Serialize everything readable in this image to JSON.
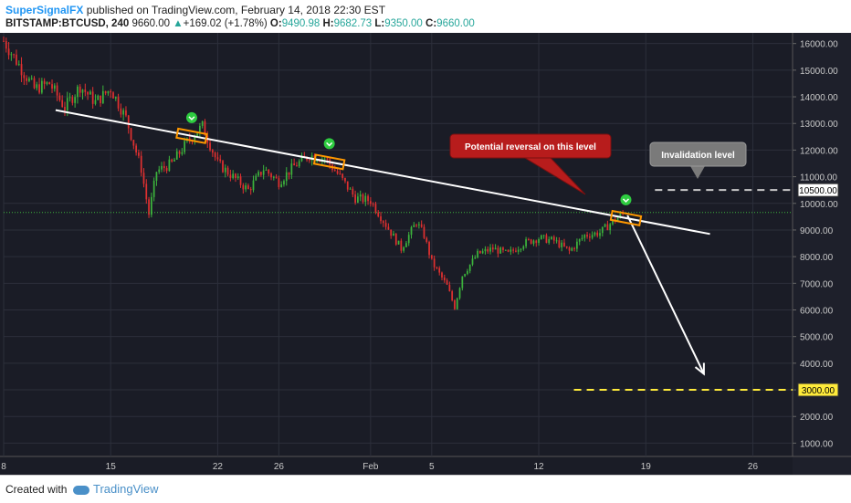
{
  "header": {
    "author": "SuperSignalFX",
    "published": "published on TradingView.com, February 14, 2018 22:30 EST",
    "symbol": "BITSTAMP:BTCUSD, 240",
    "last": "9660.00",
    "change": "+169.02 (+1.78%)",
    "o_label": "O:",
    "o_val": "9490.98",
    "h_label": "H:",
    "h_val": "9682.73",
    "l_label": "L:",
    "l_val": "9350.00",
    "c_label": "C:",
    "c_val": "9660.00"
  },
  "footer": {
    "created": "Created with",
    "brand": "TradingView"
  },
  "colors": {
    "bg": "#1a1c26",
    "up": "#3cb33c",
    "down": "#e03030",
    "grid": "#2c2f3b",
    "axis_text": "#c8c8c8"
  },
  "chart_data": {
    "type": "candlestick",
    "y_ticks": [
      1000,
      2000,
      3000,
      4000,
      5000,
      6000,
      7000,
      8000,
      9000,
      10000,
      11000,
      12000,
      13000,
      14000,
      15000,
      16000
    ],
    "y_tick_labels": [
      "1000.00",
      "2000.00",
      "3000.00",
      "4000.00",
      "5000.00",
      "6000.00",
      "7000.00",
      "8000.00",
      "9000.00",
      "10000.00",
      "11000.00",
      "12000.00",
      "13000.00",
      "14000.00",
      "15000.00",
      "16000.00"
    ],
    "ylim": [
      500,
      16400
    ],
    "x_ticks": [
      {
        "label": "8",
        "day": 8
      },
      {
        "label": "15",
        "day": 15
      },
      {
        "label": "22",
        "day": 22
      },
      {
        "label": "26",
        "day": 26
      },
      {
        "label": "Feb",
        "day": 32
      },
      {
        "label": "5",
        "day": 36
      },
      {
        "label": "12",
        "day": 43
      },
      {
        "label": "19",
        "day": 50
      },
      {
        "label": "26",
        "day": 57
      }
    ],
    "xlim": [
      8,
      59.6
    ],
    "price_path": [
      [
        8,
        16100
      ],
      [
        9,
        15200
      ],
      [
        10,
        14300
      ],
      [
        11,
        14500
      ],
      [
        12,
        13600
      ],
      [
        13,
        14400
      ],
      [
        14,
        13800
      ],
      [
        15,
        14300
      ],
      [
        16,
        13200
      ],
      [
        17,
        11300
      ],
      [
        17.5,
        9600
      ],
      [
        18,
        11200
      ],
      [
        19,
        11500
      ],
      [
        20,
        12300
      ],
      [
        21,
        12900
      ],
      [
        22,
        11500
      ],
      [
        23,
        11000
      ],
      [
        24,
        10500
      ],
      [
        25,
        11300
      ],
      [
        26,
        10800
      ],
      [
        27,
        11400
      ],
      [
        28,
        11800
      ],
      [
        29,
        11700
      ],
      [
        30,
        11000
      ],
      [
        31,
        10200
      ],
      [
        32,
        10100
      ],
      [
        33,
        9200
      ],
      [
        34,
        8300
      ],
      [
        35,
        9300
      ],
      [
        35.5,
        8800
      ],
      [
        36,
        7800
      ],
      [
        37,
        6900
      ],
      [
        37.5,
        6100
      ],
      [
        38,
        7300
      ],
      [
        39,
        8100
      ],
      [
        40,
        8300
      ],
      [
        41,
        8100
      ],
      [
        42,
        8500
      ],
      [
        43,
        8700
      ],
      [
        44,
        8600
      ],
      [
        45,
        8200
      ],
      [
        46,
        8800
      ],
      [
        47,
        8900
      ],
      [
        48,
        9400
      ],
      [
        48.6,
        9660
      ]
    ],
    "current_price": 9660,
    "current_price_day": 48.6,
    "price_labels": [
      "10500.00",
      "3000.00"
    ],
    "levels": [
      {
        "price": 10500,
        "label": "10500.00",
        "style": "dashed",
        "color": "#c8c8c8"
      },
      {
        "price": 3000,
        "label": "3000.00",
        "style": "dashed",
        "color": "#ffeb3b"
      }
    ],
    "trendline": {
      "from": [
        11.4,
        13500
      ],
      "to": [
        54.2,
        8850
      ]
    },
    "projection": {
      "from": [
        48.8,
        9550
      ],
      "to": [
        53.8,
        3600
      ]
    },
    "markers": [
      {
        "day": 20.3,
        "price": 13050
      },
      {
        "day": 29.3,
        "price": 12100
      },
      {
        "day": 48.7,
        "price": 9650
      }
    ],
    "annotations": [
      {
        "text": "Potential reversal on this level",
        "color": "#b71c1c"
      },
      {
        "text": "Invalidation level",
        "color": "#7a7a7a"
      }
    ],
    "xlabel": "",
    "ylabel": ""
  }
}
